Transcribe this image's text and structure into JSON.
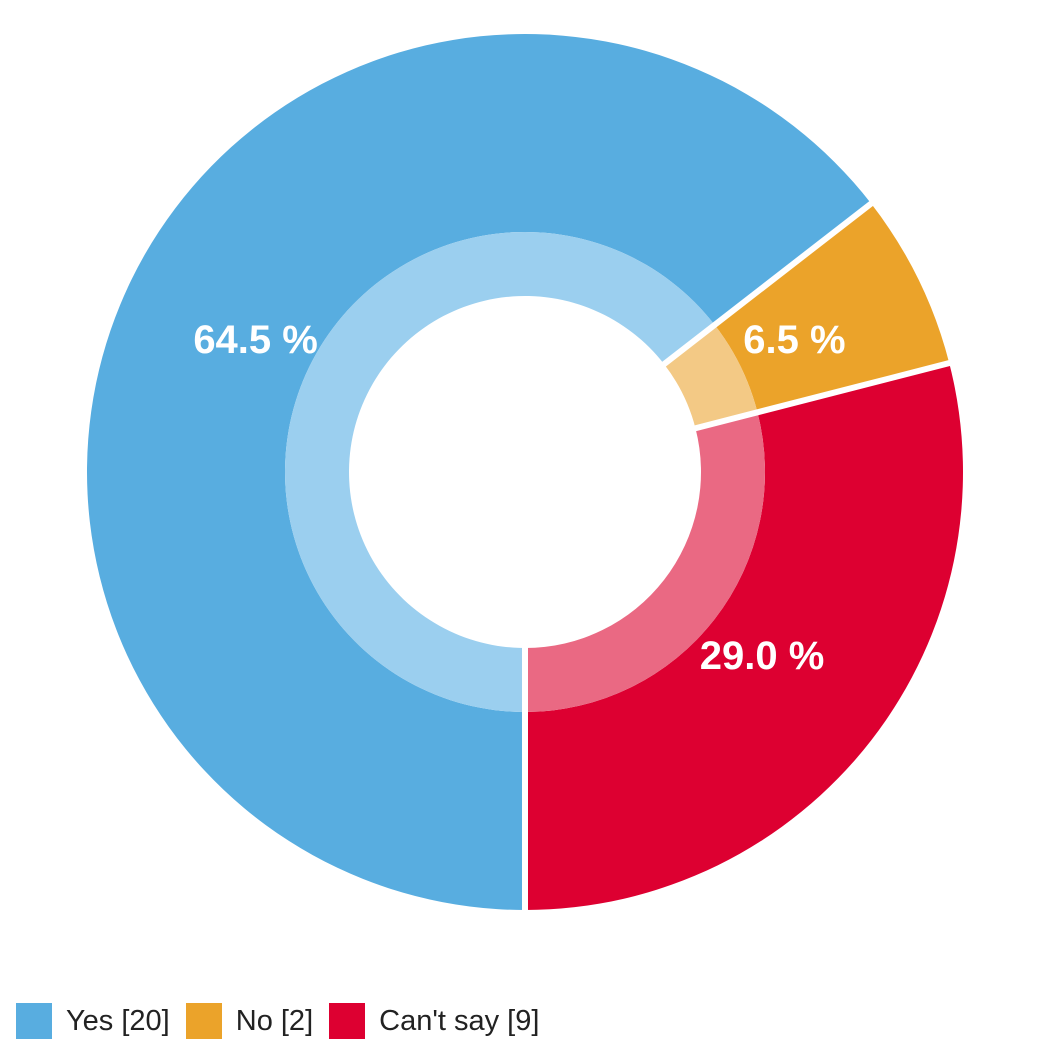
{
  "chart_data": {
    "type": "pie",
    "style": "donut",
    "slices": [
      {
        "label": "Yes",
        "count": 20,
        "percent": 64.5,
        "percent_label": "64.5 %",
        "legend_label": "Yes [20]",
        "color": "#58ade0",
        "inner_color": "#9bcfef"
      },
      {
        "label": "No",
        "count": 2,
        "percent": 6.5,
        "percent_label": "6.5 %",
        "legend_label": "No [2]",
        "color": "#eba32a",
        "inner_color": "#f3c985"
      },
      {
        "label": "Can't say",
        "count": 9,
        "percent": 29.0,
        "percent_label": "29.0 %",
        "legend_label": "Can't say [9]",
        "color": "#dd0031",
        "inner_color": "#ea6983"
      }
    ],
    "legend_position": "bottom-left"
  }
}
